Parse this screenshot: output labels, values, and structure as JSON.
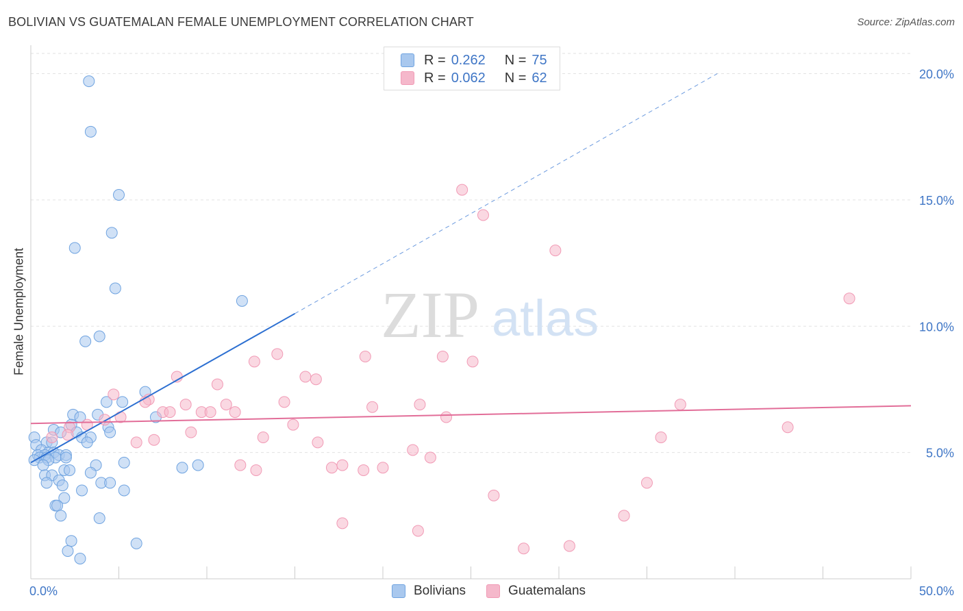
{
  "header": {
    "title": "BOLIVIAN VS GUATEMALAN FEMALE UNEMPLOYMENT CORRELATION CHART",
    "source": "Source: ZipAtlas.com"
  },
  "legend_top": {
    "rows": [
      {
        "r_label": "R =",
        "r_value": "0.262",
        "n_label": "N =",
        "n_value": "75",
        "color": "#a9c8ee"
      },
      {
        "r_label": "R =",
        "r_value": "0.062",
        "n_label": "N =",
        "n_value": "62",
        "color": "#f5b8cb"
      }
    ]
  },
  "legend_bottom": {
    "items": [
      {
        "label": "Bolivians",
        "color": "#a9c8ee"
      },
      {
        "label": "Guatemalans",
        "color": "#f5b8cb"
      }
    ]
  },
  "watermark": {
    "zip": "ZIP",
    "atlas": "atlas"
  },
  "chart_data": {
    "type": "scatter",
    "title": "BOLIVIAN VS GUATEMALAN FEMALE UNEMPLOYMENT CORRELATION CHART",
    "xlabel": "",
    "ylabel": "Female Unemployment",
    "xlim": [
      0,
      50
    ],
    "ylim": [
      0,
      20.8
    ],
    "x_tick_labels": [
      {
        "value": 0,
        "label": "0.0%"
      },
      {
        "value": 50,
        "label": "50.0%"
      }
    ],
    "y_tick_labels": [
      {
        "value": 5,
        "label": "5.0%"
      },
      {
        "value": 10,
        "label": "10.0%"
      },
      {
        "value": 15,
        "label": "15.0%"
      },
      {
        "value": 20,
        "label": "20.0%"
      }
    ],
    "grid": "horizontal-dashed",
    "legend_position": "top-center",
    "series": [
      {
        "name": "Bolivians",
        "color": "#6fa3e0",
        "fill": "#a9c8ee",
        "trend": {
          "x0": 0,
          "y0": 4.6,
          "x1": 15,
          "y1": 10.5,
          "dashed_to_x": 39,
          "dashed_to_y": 20.0,
          "color": "#2c6fd1"
        },
        "points": [
          [
            3.3,
            19.7
          ],
          [
            3.4,
            17.7
          ],
          [
            5.0,
            15.2
          ],
          [
            4.6,
            13.7
          ],
          [
            2.5,
            13.1
          ],
          [
            4.8,
            11.5
          ],
          [
            12.0,
            11.0
          ],
          [
            3.9,
            9.6
          ],
          [
            3.1,
            9.4
          ],
          [
            6.5,
            7.4
          ],
          [
            4.3,
            7.0
          ],
          [
            5.2,
            7.0
          ],
          [
            2.4,
            6.5
          ],
          [
            3.8,
            6.5
          ],
          [
            7.1,
            6.4
          ],
          [
            2.8,
            6.4
          ],
          [
            1.3,
            5.9
          ],
          [
            2.3,
            6.1
          ],
          [
            4.4,
            6.0
          ],
          [
            1.7,
            5.8
          ],
          [
            2.6,
            5.8
          ],
          [
            2.9,
            5.6
          ],
          [
            3.4,
            5.6
          ],
          [
            4.5,
            5.8
          ],
          [
            0.2,
            5.6
          ],
          [
            0.9,
            5.4
          ],
          [
            1.2,
            5.4
          ],
          [
            3.2,
            5.4
          ],
          [
            0.3,
            5.3
          ],
          [
            0.6,
            5.1
          ],
          [
            1.0,
            5.0
          ],
          [
            1.3,
            5.0
          ],
          [
            0.4,
            4.9
          ],
          [
            0.8,
            4.9
          ],
          [
            1.6,
            4.9
          ],
          [
            2.0,
            4.9
          ],
          [
            0.5,
            4.8
          ],
          [
            0.9,
            4.8
          ],
          [
            1.4,
            4.8
          ],
          [
            2.0,
            4.8
          ],
          [
            0.2,
            4.7
          ],
          [
            1.0,
            4.7
          ],
          [
            0.7,
            4.5
          ],
          [
            3.7,
            4.5
          ],
          [
            5.3,
            4.6
          ],
          [
            8.6,
            4.4
          ],
          [
            9.5,
            4.5
          ],
          [
            1.9,
            4.3
          ],
          [
            2.2,
            4.3
          ],
          [
            0.8,
            4.1
          ],
          [
            1.2,
            4.1
          ],
          [
            3.4,
            4.2
          ],
          [
            1.6,
            3.9
          ],
          [
            1.8,
            3.7
          ],
          [
            0.9,
            3.8
          ],
          [
            4.0,
            3.8
          ],
          [
            4.5,
            3.8
          ],
          [
            2.9,
            3.5
          ],
          [
            5.3,
            3.5
          ],
          [
            1.9,
            3.2
          ],
          [
            1.4,
            2.9
          ],
          [
            1.5,
            2.9
          ],
          [
            1.7,
            2.5
          ],
          [
            3.9,
            2.4
          ],
          [
            2.3,
            1.5
          ],
          [
            2.1,
            1.1
          ],
          [
            6.0,
            1.4
          ],
          [
            2.8,
            0.8
          ]
        ]
      },
      {
        "name": "Guatemalans",
        "color": "#f19ab5",
        "fill": "#f5b8cb",
        "trend": {
          "x0": 0,
          "y0": 6.15,
          "x1": 50,
          "y1": 6.85,
          "color": "#e26d98"
        },
        "points": [
          [
            24.5,
            15.4
          ],
          [
            25.7,
            14.4
          ],
          [
            29.8,
            13.0
          ],
          [
            46.5,
            11.1
          ],
          [
            14.0,
            8.9
          ],
          [
            12.7,
            8.6
          ],
          [
            19.0,
            8.8
          ],
          [
            23.4,
            8.8
          ],
          [
            25.1,
            8.6
          ],
          [
            15.6,
            8.0
          ],
          [
            16.2,
            7.9
          ],
          [
            8.3,
            8.0
          ],
          [
            10.6,
            7.7
          ],
          [
            4.7,
            7.3
          ],
          [
            6.7,
            7.1
          ],
          [
            5.1,
            6.4
          ],
          [
            6.5,
            7.0
          ],
          [
            8.8,
            6.9
          ],
          [
            11.1,
            6.9
          ],
          [
            14.4,
            7.0
          ],
          [
            19.4,
            6.8
          ],
          [
            22.1,
            6.9
          ],
          [
            36.9,
            6.9
          ],
          [
            7.5,
            6.6
          ],
          [
            7.9,
            6.6
          ],
          [
            9.7,
            6.6
          ],
          [
            10.2,
            6.6
          ],
          [
            11.6,
            6.6
          ],
          [
            23.6,
            6.4
          ],
          [
            3.2,
            6.1
          ],
          [
            4.2,
            6.3
          ],
          [
            2.2,
            6.0
          ],
          [
            14.9,
            6.1
          ],
          [
            43.0,
            6.0
          ],
          [
            2.1,
            5.7
          ],
          [
            1.2,
            5.6
          ],
          [
            9.1,
            5.8
          ],
          [
            13.2,
            5.6
          ],
          [
            35.8,
            5.6
          ],
          [
            7.0,
            5.5
          ],
          [
            6.0,
            5.4
          ],
          [
            16.3,
            5.4
          ],
          [
            21.7,
            5.1
          ],
          [
            22.7,
            4.8
          ],
          [
            11.9,
            4.5
          ],
          [
            12.8,
            4.3
          ],
          [
            17.1,
            4.4
          ],
          [
            17.7,
            4.5
          ],
          [
            18.9,
            4.3
          ],
          [
            20.0,
            4.4
          ],
          [
            35.0,
            3.8
          ],
          [
            26.3,
            3.3
          ],
          [
            17.7,
            2.2
          ],
          [
            22.0,
            1.9
          ],
          [
            33.7,
            2.5
          ],
          [
            28.0,
            1.2
          ],
          [
            30.6,
            1.3
          ]
        ]
      }
    ]
  }
}
